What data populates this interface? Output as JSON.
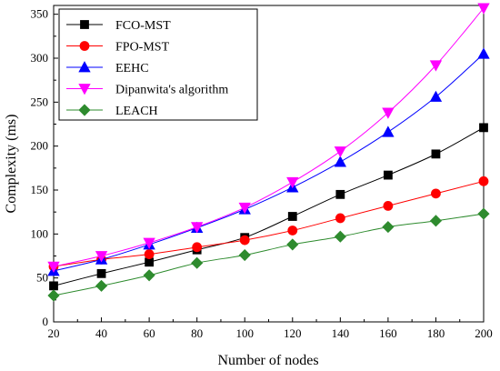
{
  "chart_data": {
    "type": "line",
    "title": "",
    "xlabel": "Number of nodes",
    "ylabel": "Complexity (ms)",
    "x": [
      20,
      40,
      60,
      80,
      100,
      120,
      140,
      160,
      180,
      200
    ],
    "xlim": [
      20,
      200
    ],
    "ylim": [
      0,
      360
    ],
    "xticks": [
      20,
      40,
      60,
      80,
      100,
      120,
      140,
      160,
      180,
      200
    ],
    "yticks": [
      0,
      50,
      100,
      150,
      200,
      250,
      300,
      350
    ],
    "grid": false,
    "legend_position": "top-left",
    "series": [
      {
        "name": "FCO-MST",
        "color": "#000000",
        "marker": "square",
        "values": [
          41,
          55,
          68,
          82,
          96,
          120,
          145,
          167,
          191,
          221
        ]
      },
      {
        "name": "FPO-MST",
        "color": "#ff0000",
        "marker": "circle",
        "values": [
          63,
          71,
          77,
          85,
          93,
          104,
          118,
          132,
          146,
          160
        ]
      },
      {
        "name": "EEHC",
        "color": "#0000ff",
        "marker": "triangle-up",
        "values": [
          58,
          71,
          88,
          107,
          128,
          153,
          182,
          216,
          256,
          305
        ]
      },
      {
        "name": "Dipanwita's algorithm",
        "color": "#ff00ff",
        "marker": "triangle-down",
        "values": [
          63,
          75,
          90,
          108,
          130,
          159,
          194,
          238,
          292,
          357
        ]
      },
      {
        "name": "LEACH",
        "color": "#2e8b2e",
        "marker": "diamond",
        "values": [
          30,
          41,
          53,
          67,
          76,
          88,
          97,
          108,
          115,
          123
        ]
      }
    ]
  }
}
